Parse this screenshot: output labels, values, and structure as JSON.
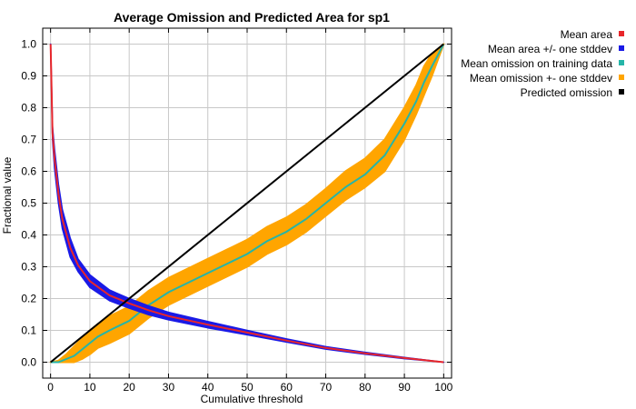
{
  "chart_data": {
    "type": "line",
    "title": "Average Omission and Predicted Area for sp1",
    "xlabel": "Cumulative threshold",
    "ylabel": "Fractional value",
    "xlim": [
      -2,
      102
    ],
    "ylim": [
      -0.05,
      1.05
    ],
    "xticks": [
      0,
      10,
      20,
      30,
      40,
      50,
      60,
      70,
      80,
      90,
      100
    ],
    "yticks": [
      0.0,
      0.1,
      0.2,
      0.3,
      0.4,
      0.5,
      0.6,
      0.7,
      0.8,
      0.9,
      1.0
    ],
    "grid": true,
    "legend_position": "outside-right",
    "series": [
      {
        "name": "Mean area",
        "color": "#e8262a",
        "x": [
          0,
          0.5,
          1,
          2,
          3,
          5,
          7,
          10,
          15,
          20,
          25,
          30,
          40,
          50,
          60,
          70,
          80,
          90,
          100
        ],
        "y": [
          1.0,
          0.72,
          0.64,
          0.53,
          0.45,
          0.36,
          0.305,
          0.255,
          0.21,
          0.185,
          0.163,
          0.145,
          0.118,
          0.093,
          0.068,
          0.045,
          0.028,
          0.013,
          0.0
        ]
      },
      {
        "name": "Mean area +/- one stddev",
        "color": "#1a1ae6",
        "x": [
          0,
          0.5,
          1,
          2,
          3,
          5,
          7,
          10,
          15,
          20,
          25,
          30,
          40,
          50,
          60,
          70,
          80,
          90,
          100
        ],
        "upper": [
          1.0,
          0.74,
          0.67,
          0.56,
          0.48,
          0.39,
          0.325,
          0.275,
          0.227,
          0.2,
          0.177,
          0.157,
          0.128,
          0.1,
          0.073,
          0.049,
          0.031,
          0.015,
          0.0
        ],
        "lower": [
          1.0,
          0.7,
          0.61,
          0.5,
          0.42,
          0.33,
          0.285,
          0.235,
          0.193,
          0.17,
          0.149,
          0.133,
          0.108,
          0.086,
          0.063,
          0.041,
          0.025,
          0.011,
          0.0
        ]
      },
      {
        "name": "Mean omission on training data",
        "color": "#25b5a8",
        "x": [
          0,
          2,
          4,
          6,
          8,
          10,
          12,
          15,
          20,
          25,
          30,
          35,
          40,
          45,
          50,
          55,
          60,
          65,
          70,
          75,
          80,
          85,
          90,
          93,
          95,
          97,
          100
        ],
        "y": [
          0.0,
          0.0,
          0.01,
          0.02,
          0.04,
          0.06,
          0.08,
          0.1,
          0.13,
          0.18,
          0.22,
          0.25,
          0.28,
          0.31,
          0.34,
          0.38,
          0.41,
          0.45,
          0.5,
          0.55,
          0.59,
          0.65,
          0.75,
          0.82,
          0.88,
          0.93,
          1.0
        ]
      },
      {
        "name": "Mean omission +- one stddev",
        "color": "#ffa500",
        "x": [
          0,
          2,
          4,
          6,
          8,
          10,
          12,
          15,
          20,
          25,
          30,
          35,
          40,
          45,
          50,
          55,
          60,
          65,
          70,
          75,
          80,
          85,
          90,
          93,
          95,
          97,
          100
        ],
        "upper": [
          0.0,
          0.005,
          0.025,
          0.05,
          0.075,
          0.1,
          0.12,
          0.145,
          0.175,
          0.225,
          0.265,
          0.295,
          0.325,
          0.355,
          0.385,
          0.425,
          0.455,
          0.495,
          0.545,
          0.6,
          0.64,
          0.7,
          0.8,
          0.87,
          0.93,
          0.97,
          1.0
        ],
        "lower": [
          0.0,
          0.0,
          0.0,
          0.0,
          0.01,
          0.025,
          0.045,
          0.06,
          0.09,
          0.14,
          0.18,
          0.21,
          0.24,
          0.27,
          0.3,
          0.34,
          0.37,
          0.41,
          0.46,
          0.51,
          0.55,
          0.6,
          0.7,
          0.78,
          0.84,
          0.9,
          1.0
        ]
      },
      {
        "name": "Predicted omission",
        "color": "#000000",
        "x": [
          0,
          100
        ],
        "y": [
          0.0,
          1.0
        ]
      }
    ]
  }
}
